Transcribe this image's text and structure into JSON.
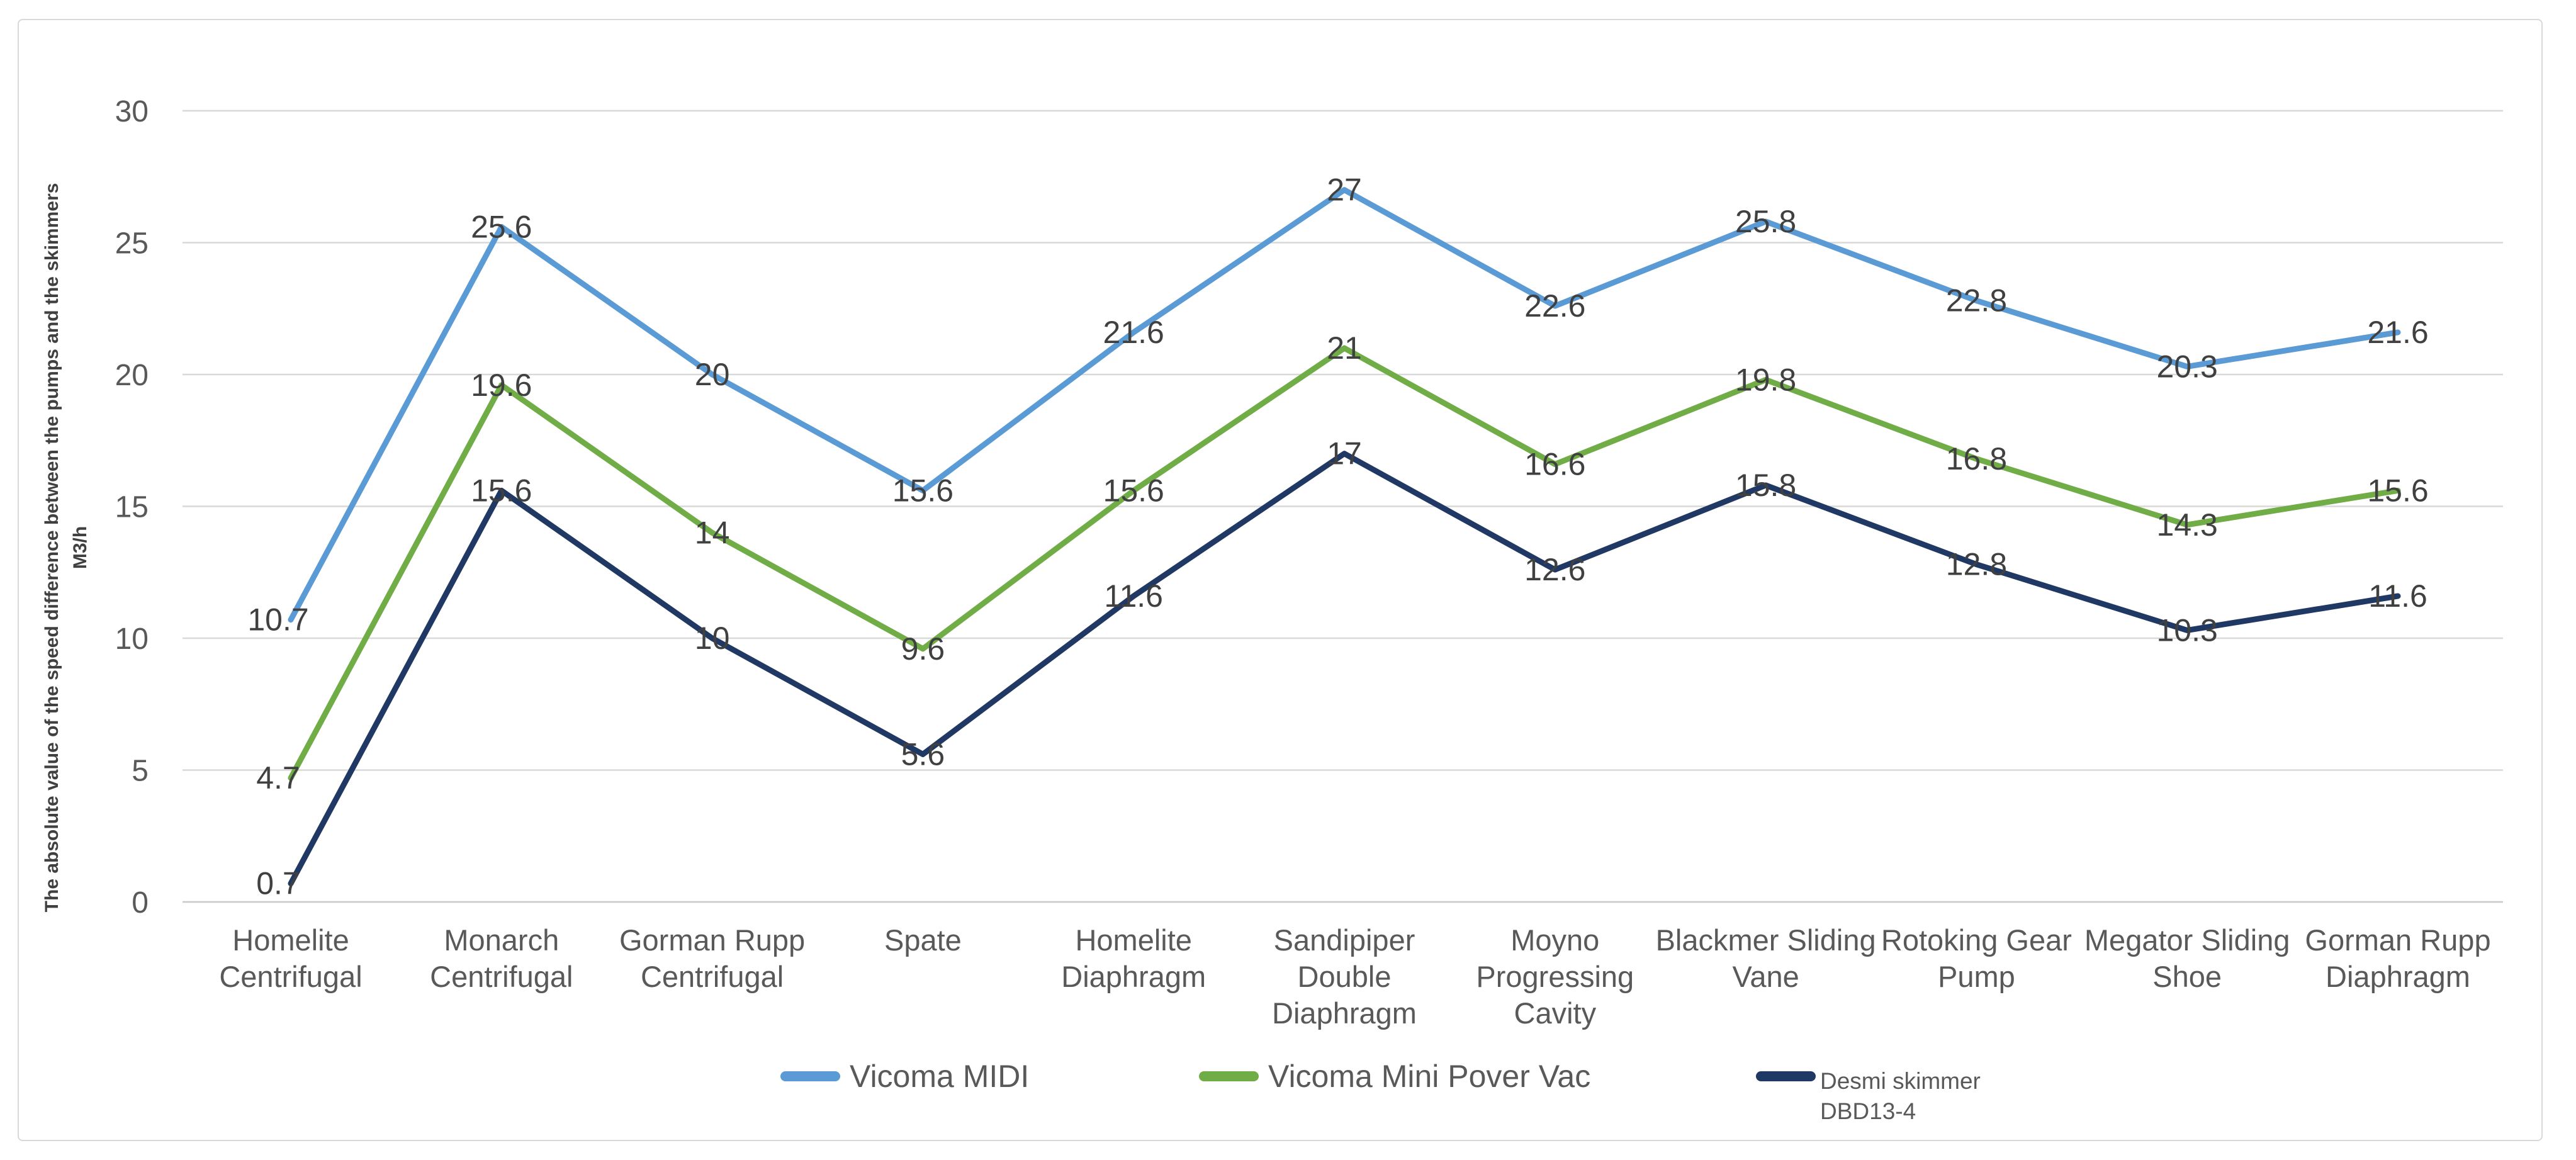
{
  "y_axis": {
    "title": "The absolute value of the speed difference between the pumps and the skimmers",
    "unit_label": "M3/h",
    "ticks": [
      "0",
      "5",
      "10",
      "15",
      "20",
      "25",
      "30"
    ],
    "min": 0,
    "max": 30,
    "step": 5
  },
  "legend": {
    "entries": [
      {
        "label_lines": [
          "Vicoma MIDI"
        ],
        "color": "#5B9BD5",
        "small": false
      },
      {
        "label_lines": [
          "Vicoma Mini Pover Vac"
        ],
        "color": "#70AD47",
        "small": false
      },
      {
        "label_lines": [
          "Desmi skimmer",
          "DBD13-4"
        ],
        "color": "#1F3864",
        "small": true
      }
    ]
  },
  "colors": {
    "series_blue": "#5B9BD5",
    "series_green": "#70AD47",
    "series_navy": "#1F3864",
    "gridline": "#D9D9D9",
    "axis_line": "#C9C9C9",
    "tick_text": "#595959",
    "category_text": "#595959",
    "data_label_text": "#404040",
    "figure_border": "#D9D9D9"
  },
  "chart_data": {
    "type": "line",
    "title": "",
    "xlabel": "",
    "ylabel": "The absolute value of the speed difference between the pumps and the skimmers M3/h",
    "ylim": [
      0,
      30
    ],
    "ytick_step": 5,
    "grid": true,
    "legend_position": "bottom",
    "categories": [
      "Homelite Centrifugal",
      "Monarch Centrifugal",
      "Gorman Rupp Centrifugal",
      "Spate",
      "Homelite Diaphragm",
      "Sandipiper Double Diaphragm",
      "Moyno Progressing Cavity",
      "Blackmer Sliding Vane",
      "Rotoking Gear Pump",
      "Megator Sliding Shoe",
      "Gorman Rupp Diaphragm"
    ],
    "category_label_lines": [
      [
        "Homelite",
        "Centrifugal"
      ],
      [
        "Monarch",
        "Centrifugal"
      ],
      [
        "Gorman Rupp",
        "Centrifugal"
      ],
      [
        "Spate"
      ],
      [
        "Homelite",
        "Diaphragm"
      ],
      [
        "Sandipiper",
        "Double",
        "Diaphragm"
      ],
      [
        "Moyno",
        "Progressing",
        "Cavity"
      ],
      [
        "Blackmer Sliding",
        "Vane"
      ],
      [
        "Rotoking Gear",
        "Pump"
      ],
      [
        "Megator Sliding",
        "Shoe"
      ],
      [
        "Gorman Rupp",
        "Diaphragm"
      ]
    ],
    "series": [
      {
        "name": "Vicoma MIDI",
        "color": "#5B9BD5",
        "values": [
          10.7,
          25.6,
          20,
          15.6,
          21.6,
          27,
          22.6,
          25.8,
          22.8,
          20.3,
          21.6
        ],
        "labels": [
          "10.7",
          "25.6",
          "20",
          "15.6",
          "21.6",
          "27",
          "22.6",
          "25.8",
          "22.8",
          "20.3",
          "21.6"
        ]
      },
      {
        "name": "Vicoma Mini Pover Vac",
        "color": "#70AD47",
        "values": [
          4.7,
          19.6,
          14,
          9.6,
          15.6,
          21,
          16.6,
          19.8,
          16.8,
          14.3,
          15.6
        ],
        "labels": [
          "4.7",
          "19.6",
          "14",
          "9.6",
          "15.6",
          "21",
          "16.6",
          "19.8",
          "16.8",
          "14.3",
          "15.6"
        ]
      },
      {
        "name": "Desmi skimmer DBD13-4",
        "color": "#1F3864",
        "values": [
          0.7,
          15.6,
          10,
          5.6,
          11.6,
          17,
          12.6,
          15.8,
          12.8,
          10.3,
          11.6
        ],
        "labels": [
          "0.7",
          "15.6",
          "10",
          "5.6",
          "11.6",
          "17",
          "12.6",
          "15.8",
          "12.8",
          "10.3",
          "11.6"
        ]
      }
    ]
  }
}
